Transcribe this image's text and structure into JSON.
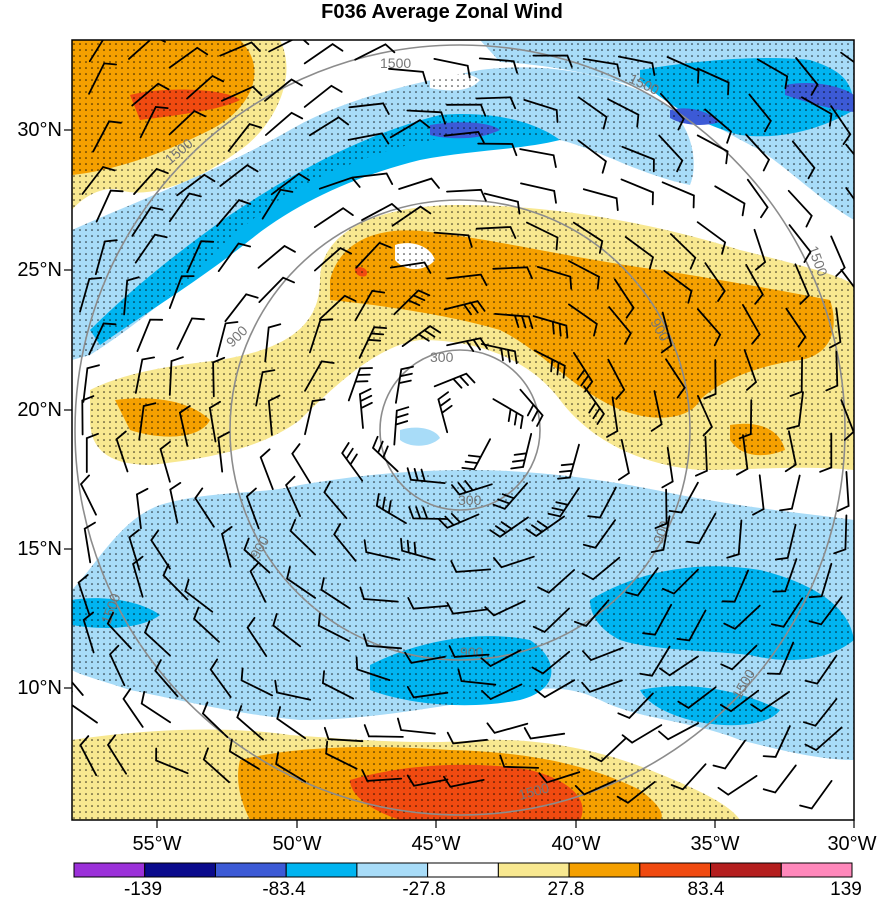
{
  "title": "F036 Average Zonal Wind",
  "map": {
    "latitude_labels": [
      "30°N",
      "25°N",
      "20°N",
      "15°N",
      "10°N"
    ],
    "longitude_labels": [
      "55°W",
      "50°W",
      "45°W",
      "40°W",
      "35°W",
      "30°W"
    ],
    "range_ring_labels": [
      "300",
      "900",
      "1500"
    ],
    "stippling": "dotted shading over colored regions",
    "wind_barbs": "black wind barbs across domain"
  },
  "colorbar": {
    "colors": [
      "#9b30d9",
      "#0a0a8c",
      "#3c5ad6",
      "#00b4f0",
      "#a8dcf8",
      "#ffffff",
      "#f8e890",
      "#f5a000",
      "#f04a10",
      "#b41e1e",
      "#ff88bb"
    ],
    "labels": [
      "-139",
      "-83.4",
      "-27.8",
      "27.8",
      "83.4",
      "139"
    ]
  },
  "palette": {
    "light_blue": "#a8dcf8",
    "mid_blue": "#00b4f0",
    "dark_blue": "#3c5ad6",
    "deep_blue": "#0a0a8c",
    "light_yellow": "#f8e890",
    "orange": "#f5a000",
    "red": "#f04a10",
    "ring": "#8c8c8c"
  }
}
